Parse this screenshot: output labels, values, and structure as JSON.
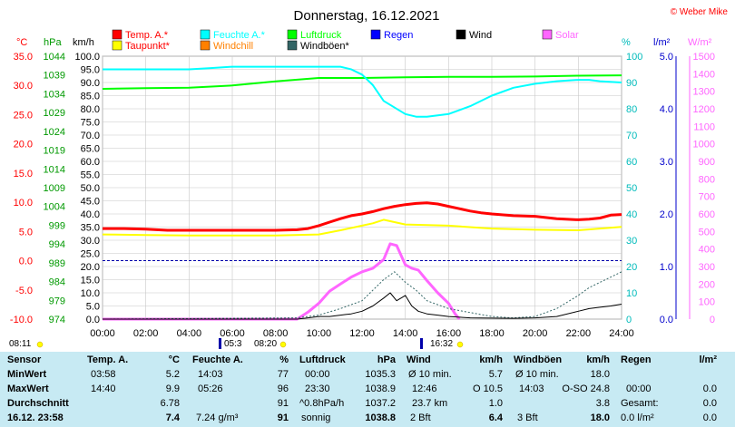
{
  "header": {
    "title": "Donnerstag, 16.12.2021",
    "credit": "© Weber Mike"
  },
  "colors": {
    "temp": "#ff0000",
    "dew": "#ffff00",
    "humidity": "#00ffff",
    "pressure": "#00ff00",
    "windchill": "#ff8000",
    "rain": "#0000ff",
    "wind": "#000000",
    "gust": "#336666",
    "solar": "#ff66ff",
    "grid": "#c8c8c8",
    "stats_bg": "#c7eaf3"
  },
  "chart_data": {
    "type": "line",
    "legend": {
      "row1": [
        {
          "name": "Temp. A.*",
          "color": "#ff0000"
        },
        {
          "name": "Feuchte A.*",
          "color": "#00ffff"
        },
        {
          "name": "Luftdruck",
          "color": "#00ff00"
        },
        {
          "name": "Regen",
          "color": "#0000ff"
        },
        {
          "name": "Wind",
          "color": "#000000"
        },
        {
          "name": "Solar",
          "color": "#ff66ff"
        }
      ],
      "row2": [
        {
          "name": "Taupunkt*",
          "color": "#ffff00"
        },
        {
          "name": "Windchill",
          "color": "#ff8000"
        },
        {
          "name": "Windböen*",
          "color": "#336666"
        }
      ]
    },
    "axes": {
      "temp": {
        "unit": "°C",
        "ticks": [
          "35.0",
          "30.0",
          "25.0",
          "20.0",
          "15.0",
          "10.0",
          "5.0",
          "0.0",
          "-5.0",
          "-10.0"
        ],
        "range": [
          -10,
          35
        ]
      },
      "pressure": {
        "unit": "hPa",
        "ticks": [
          "1044",
          "1039",
          "1034",
          "1029",
          "1024",
          "1019",
          "1014",
          "1009",
          "1004",
          "999",
          "994",
          "989",
          "984",
          "979",
          "974"
        ],
        "range": [
          974,
          1044
        ]
      },
      "wind": {
        "unit": "km/h",
        "ticks": [
          "100.0",
          "95.0",
          "90.0",
          "85.0",
          "80.0",
          "75.0",
          "70.0",
          "65.0",
          "60.0",
          "55.0",
          "50.0",
          "45.0",
          "40.0",
          "35.0",
          "30.0",
          "25.0",
          "20.0",
          "15.0",
          "10.0",
          "5.0",
          "0.0"
        ],
        "range": [
          0,
          100
        ]
      },
      "humidity": {
        "unit": "%",
        "ticks": [
          "100",
          "90",
          "80",
          "70",
          "60",
          "50",
          "40",
          "30",
          "20",
          "10",
          "0"
        ],
        "range": [
          0,
          100
        ]
      },
      "rain": {
        "unit": "l/m²",
        "ticks": [
          "5.0",
          "4.0",
          "3.0",
          "2.0",
          "1.0",
          "0.0"
        ],
        "range": [
          0,
          5
        ]
      },
      "solar": {
        "unit": "W/m²",
        "ticks": [
          "1500",
          "1400",
          "1300",
          "1200",
          "1100",
          "1000",
          "900",
          "800",
          "700",
          "600",
          "500",
          "400",
          "300",
          "200",
          "100",
          "0"
        ],
        "range": [
          0,
          1500
        ]
      },
      "x": {
        "ticks": [
          "00:00",
          "02:00",
          "04:00",
          "06:00",
          "08:00",
          "10:00",
          "12:00",
          "14:00",
          "16:00",
          "18:00",
          "20:00",
          "22:00",
          "24:00"
        ],
        "range": [
          0,
          24
        ]
      }
    },
    "markers": {
      "left": "08:11",
      "sunrise": "05:3",
      "sunrise2": "08:20",
      "sunset": "16:32"
    },
    "series": {
      "temp": {
        "x": [
          0,
          1,
          2,
          3,
          4,
          5,
          6,
          7,
          8,
          9,
          9.5,
          10,
          10.5,
          11,
          11.5,
          12,
          12.5,
          13,
          13.5,
          14,
          14.5,
          15,
          15.5,
          16,
          16.5,
          17,
          17.5,
          18,
          19,
          20,
          21,
          22,
          22.5,
          23,
          23.5,
          24
        ],
        "y": [
          5.5,
          5.5,
          5.4,
          5.2,
          5.2,
          5.2,
          5.2,
          5.2,
          5.2,
          5.3,
          5.5,
          6.0,
          6.6,
          7.2,
          7.7,
          8.0,
          8.4,
          8.9,
          9.3,
          9.6,
          9.8,
          9.9,
          9.7,
          9.3,
          8.9,
          8.5,
          8.2,
          8.0,
          7.7,
          7.6,
          7.2,
          7.0,
          7.1,
          7.3,
          7.8,
          7.9
        ]
      },
      "dew": {
        "x": [
          0,
          2,
          4,
          6,
          8,
          10,
          11,
          12,
          12.5,
          13,
          14,
          15,
          16,
          18,
          20,
          22,
          24
        ],
        "y": [
          4.5,
          4.4,
          4.3,
          4.3,
          4.3,
          4.5,
          5.2,
          6.0,
          6.4,
          7.0,
          6.2,
          6.1,
          6.0,
          5.5,
          5.3,
          5.2,
          5.8
        ]
      },
      "humidity": {
        "x": [
          0,
          2,
          4,
          5,
          6,
          8,
          10,
          11,
          11.5,
          12,
          12.5,
          13,
          14,
          14.5,
          15,
          16,
          17,
          18,
          19,
          20,
          21,
          22,
          22.5,
          23,
          24
        ],
        "y": [
          95,
          95,
          95,
          95.5,
          96,
          96,
          96,
          96,
          95,
          93,
          89,
          83,
          78,
          77,
          77,
          78,
          81,
          85,
          88,
          89.5,
          90.5,
          91,
          91,
          90.5,
          90
        ]
      },
      "pressure": {
        "x": [
          0,
          2,
          4,
          6,
          8,
          10,
          12,
          14,
          16,
          18,
          20,
          22,
          24
        ],
        "y": [
          1035.3,
          1035.5,
          1035.6,
          1036.2,
          1037.3,
          1038.2,
          1038.2,
          1038.4,
          1038.5,
          1038.5,
          1038.6,
          1038.8,
          1038.9
        ]
      },
      "solar": {
        "x": [
          0,
          9,
          9.5,
          10,
          10.5,
          11,
          11.5,
          12,
          12.5,
          13,
          13.3,
          13.6,
          14,
          14.3,
          14.6,
          15,
          15.5,
          16,
          16.3,
          16.5
        ],
        "y": [
          0,
          0,
          40,
          90,
          160,
          200,
          240,
          270,
          290,
          340,
          430,
          420,
          310,
          290,
          280,
          220,
          150,
          90,
          30,
          0
        ]
      },
      "wind": {
        "x": [
          0,
          9,
          9.5,
          10,
          10.5,
          11,
          11.5,
          12,
          12.5,
          13,
          13.3,
          13.6,
          14,
          14.3,
          14.6,
          15,
          15.5,
          16,
          17,
          19,
          20,
          21,
          22,
          22.5,
          23,
          23.5,
          24
        ],
        "y": [
          0,
          0,
          0.5,
          1,
          1,
          1.5,
          2,
          3,
          5,
          8,
          10,
          7,
          9,
          5,
          3,
          2,
          1.5,
          1,
          0.5,
          0.3,
          0.5,
          1,
          3,
          4,
          4.5,
          5,
          5.7
        ]
      },
      "gust": {
        "x": [
          0,
          9,
          10,
          11,
          12,
          13,
          13.5,
          14,
          14.5,
          15,
          16,
          18,
          19,
          20,
          21,
          22,
          22.5,
          23,
          24
        ],
        "y": [
          0,
          0.5,
          1.5,
          4,
          7,
          15,
          18,
          14,
          11,
          7,
          4,
          1,
          0.5,
          1,
          4,
          9,
          12,
          14,
          18
        ]
      }
    }
  },
  "stats": {
    "headers": {
      "sensor": "Sensor",
      "temp": "Temp. A.",
      "temp_unit": "°C",
      "hum": "Feuchte A.",
      "hum_unit": "%",
      "press": "Luftdruck",
      "press_unit": "hPa",
      "wind": "Wind",
      "wind_unit": "km/h",
      "gust": "Windböen",
      "gust_unit": "km/h",
      "rain": "Regen",
      "rain_unit": "l/m²"
    },
    "labels": {
      "min": "MinWert",
      "max": "MaxWert",
      "avg": "Durchschnitt",
      "now": "16.12. 23:58"
    },
    "temp": {
      "min_time": "03:58",
      "min": "5.2",
      "max_time": "14:40",
      "max": "9.9",
      "avg": "6.78",
      "now": "7.4"
    },
    "hum": {
      "min_time": "14:03",
      "min": "77",
      "max_time": "05:26",
      "max": "96",
      "avg": "91",
      "now_extra": "7.24 g/m³",
      "now": "91"
    },
    "press": {
      "min_time": "00:00",
      "min": "1035.3",
      "max_time": "23:30",
      "max": "1038.9",
      "trend": "^0.8hPa/h",
      "avg": "1037.2",
      "now_text": "sonnig",
      "now": "1038.8"
    },
    "wind": {
      "r1_label": "Ø 10 min.",
      "r1_val": "5.7",
      "r2_time": "12:46",
      "r2_val": "O 10.5",
      "r3_label": "23.7 km",
      "r3_val": "1.0",
      "r4_label": "2 Bft",
      "r4_val": "6.4"
    },
    "gust": {
      "r1_label": "Ø 10 min.",
      "r1_val": "18.0",
      "r2_time": "14:03",
      "r2_val": "O-SO 24.8",
      "r3_val": "3.8",
      "r4_label": "3 Bft",
      "r4_val": "18.0"
    },
    "rain": {
      "r2_time": "00:00",
      "r2_val": "0.0",
      "r3_label": "Gesamt:",
      "r3_val": "0.0",
      "r4_val": "0.0 l/m²",
      "r4_val2": "0.0"
    }
  }
}
